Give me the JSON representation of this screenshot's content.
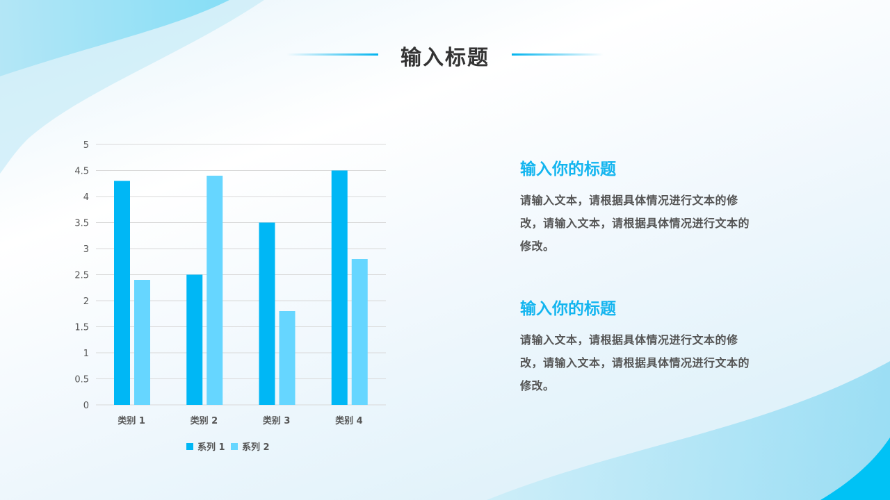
{
  "title": "输入标题",
  "blocks": [
    {
      "heading": "输入你的标题",
      "body": "请输入文本，请根据具体情况进行文本的修改，请输入文本，请根据具体情况进行文本的修改。"
    },
    {
      "heading": "输入你的标题",
      "body": "请输入文本，请根据具体情况进行文本的修改，请输入文本，请根据具体情况进行文本的修改。"
    }
  ],
  "chart_data": {
    "type": "bar",
    "categories": [
      "类别 1",
      "类别 2",
      "类别 3",
      "类别 4"
    ],
    "series": [
      {
        "name": "系列 1",
        "values": [
          4.3,
          2.5,
          3.5,
          4.5
        ],
        "color": "#00b7f5"
      },
      {
        "name": "系列 2",
        "values": [
          2.4,
          4.4,
          1.8,
          2.8
        ],
        "color": "#66d6ff"
      }
    ],
    "ylim": [
      0,
      5
    ],
    "yticks": [
      "0",
      "0.5",
      "1",
      "1.5",
      "2",
      "2.5",
      "3",
      "3.5",
      "4",
      "4.5",
      "5"
    ],
    "grid": true,
    "legend": "bottom"
  }
}
